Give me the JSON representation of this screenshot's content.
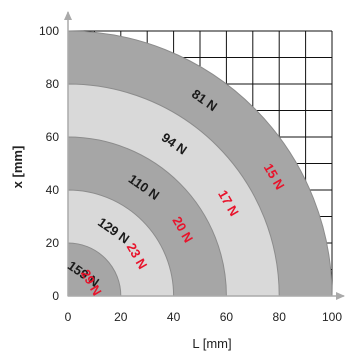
{
  "chart_data": {
    "type": "area",
    "title": "",
    "xlabel": "L [mm]",
    "ylabel": "x [mm]",
    "xlim": [
      0,
      100
    ],
    "ylim": [
      0,
      100
    ],
    "x_ticks": [
      0,
      20,
      40,
      60,
      80,
      100
    ],
    "y_ticks": [
      0,
      20,
      40,
      60,
      80,
      100
    ],
    "x_tick_labels": [
      "0",
      "20",
      "40",
      "60",
      "80",
      "100"
    ],
    "y_tick_labels": [
      "0",
      "20",
      "40",
      "60",
      "80",
      "100"
    ],
    "grid": true,
    "grid_spacing": 10,
    "rings": [
      {
        "radius": 100,
        "color": "#a6a6a6"
      },
      {
        "radius": 80,
        "color": "#d9d9d9"
      },
      {
        "radius": 60,
        "color": "#a6a6a6"
      },
      {
        "radius": 40,
        "color": "#d9d9d9"
      },
      {
        "radius": 20,
        "color": "#a6a6a6"
      }
    ],
    "series": [
      {
        "values": [
          {
            "radius": 90,
            "label": "81 N"
          },
          {
            "radius": 70,
            "label": "94 N"
          },
          {
            "radius": 50,
            "label": "110 N"
          },
          {
            "radius": 30,
            "label": "129 N"
          },
          {
            "radius": 10,
            "label": "159 N"
          }
        ]
      },
      {
        "values": [
          {
            "radius": 90,
            "label": "15 N"
          },
          {
            "radius": 70,
            "label": "17 N"
          },
          {
            "radius": 50,
            "label": "20 N"
          },
          {
            "radius": 30,
            "label": "23 N"
          },
          {
            "radius": 10,
            "label": "29 N"
          }
        ]
      }
    ],
    "colors": {
      "series_1": "#1a1a1a",
      "series_2": "#e8132b",
      "grid": "#111111",
      "arc_edge": "#8c8c8c",
      "axis": "#aaaaaa"
    }
  }
}
